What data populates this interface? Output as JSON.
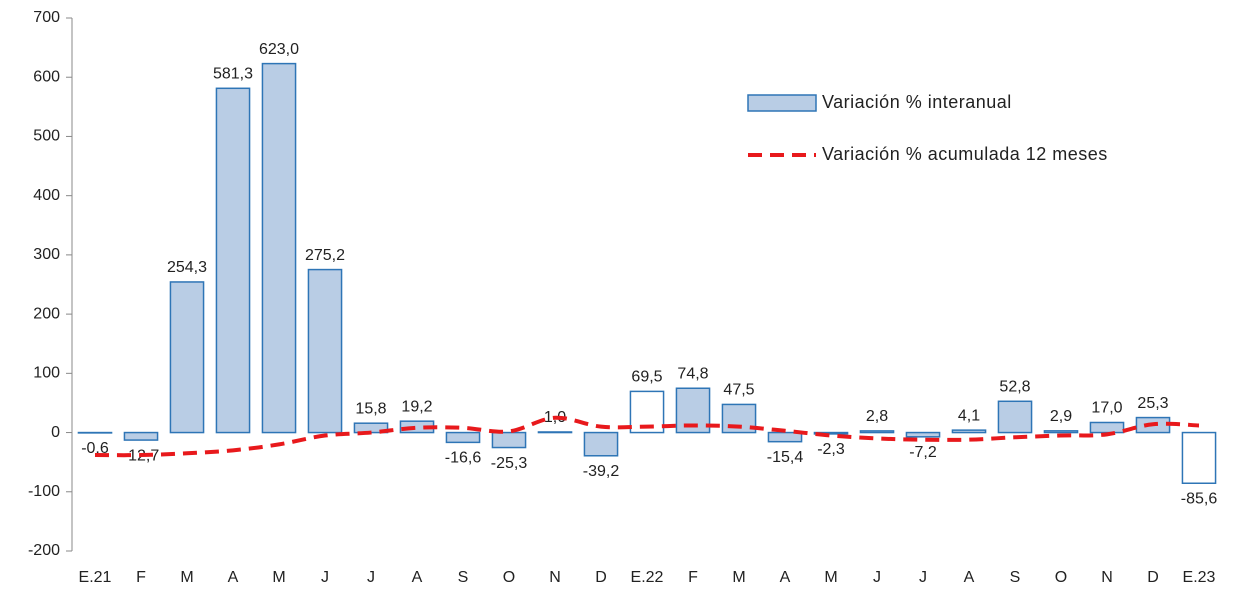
{
  "chart_data": {
    "type": "bar-line",
    "categories": [
      "E.21",
      "F",
      "M",
      "A",
      "M",
      "J",
      "J",
      "A",
      "S",
      "O",
      "N",
      "D",
      "E.22",
      "F",
      "M",
      "A",
      "M",
      "J",
      "J",
      "A",
      "S",
      "O",
      "N",
      "D",
      "E.23"
    ],
    "series": [
      {
        "name": "Variación % interanual",
        "type": "bar",
        "color": "#b9cde5",
        "edge_color": "#2e75b6",
        "fill_colors": [
          "#b9cde5",
          "#b9cde5",
          "#b9cde5",
          "#b9cde5",
          "#b9cde5",
          "#b9cde5",
          "#b9cde5",
          "#b9cde5",
          "#b9cde5",
          "#b9cde5",
          "#b9cde5",
          "#b9cde5",
          "#ffffff",
          "#b9cde5",
          "#b9cde5",
          "#b9cde5",
          "#b9cde5",
          "#b9cde5",
          "#b9cde5",
          "#b9cde5",
          "#b9cde5",
          "#b9cde5",
          "#b9cde5",
          "#b9cde5",
          "#ffffff"
        ],
        "values": [
          -0.6,
          -12.7,
          254.3,
          581.3,
          623.0,
          275.2,
          15.8,
          19.2,
          -16.6,
          -25.3,
          1.0,
          -39.2,
          69.5,
          74.8,
          47.5,
          -15.4,
          -2.3,
          2.8,
          -7.2,
          4.1,
          52.8,
          2.9,
          17.0,
          25.3,
          -85.6
        ],
        "value_labels": [
          "-0,6",
          "-12,7",
          "254,3",
          "581,3",
          "623,0",
          "275,2",
          "15,8",
          "19,2",
          "-16,6",
          "-25,3",
          "1,0",
          "-39,2",
          "69,5",
          "74,8",
          "47,5",
          "-15,4",
          "-2,3",
          "2,8",
          "-7,2",
          "4,1",
          "52,8",
          "2,9",
          "17,0",
          "25,3",
          "-85,6"
        ]
      },
      {
        "name": "Variación % acumulada 12 meses",
        "type": "line",
        "color": "#e8191c",
        "dashed": true,
        "values": [
          -38,
          -38,
          -35,
          -30,
          -20,
          -5,
          0,
          8,
          8,
          2,
          25,
          10,
          10,
          12,
          10,
          3,
          -5,
          -10,
          -12,
          -12,
          -8,
          -5,
          -3,
          14,
          12
        ]
      }
    ],
    "ylim": [
      -200,
      700
    ],
    "yticks": [
      -200,
      -100,
      0,
      100,
      200,
      300,
      400,
      500,
      600,
      700
    ],
    "legend": "upper right"
  }
}
